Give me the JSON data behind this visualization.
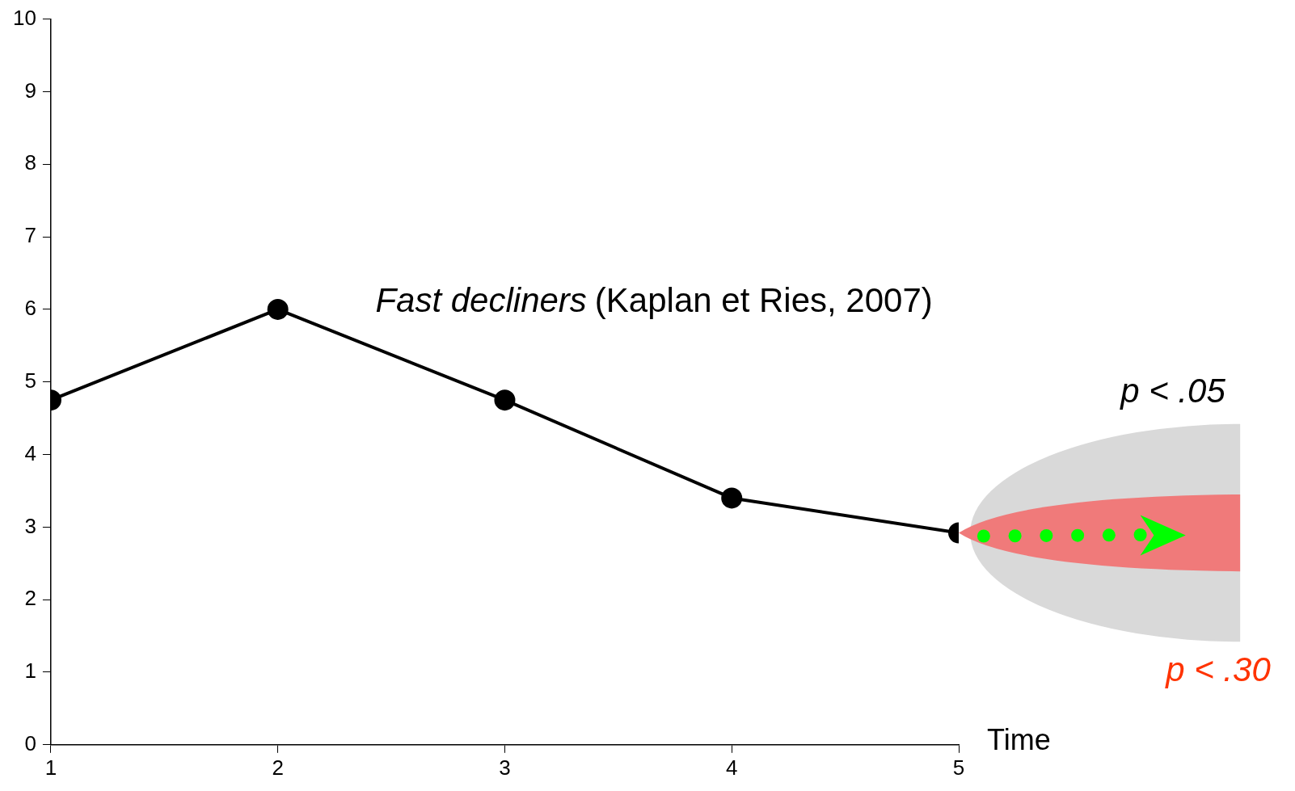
{
  "chart_data": {
    "type": "line",
    "xlabel": "Time",
    "annotations": [
      "Fast decliners",
      "(Kaplan et Ries, 2007)",
      "p < .05",
      "p < .30"
    ],
    "x": [
      1,
      2,
      3,
      4,
      5
    ],
    "series": [
      {
        "color": "#000000",
        "values": [
          4.75,
          6,
          4.75,
          3.4,
          2.92
        ]
      }
    ],
    "xlim": [
      1,
      5
    ],
    "xticks": [
      1,
      2,
      3,
      4,
      5
    ],
    "ylim": [
      0,
      10
    ],
    "yticks": [
      0,
      1,
      2,
      3,
      4,
      5,
      6,
      7,
      8,
      9,
      10
    ],
    "grid": false,
    "legend": false,
    "marker": "circle",
    "line_style": "solid"
  }
}
